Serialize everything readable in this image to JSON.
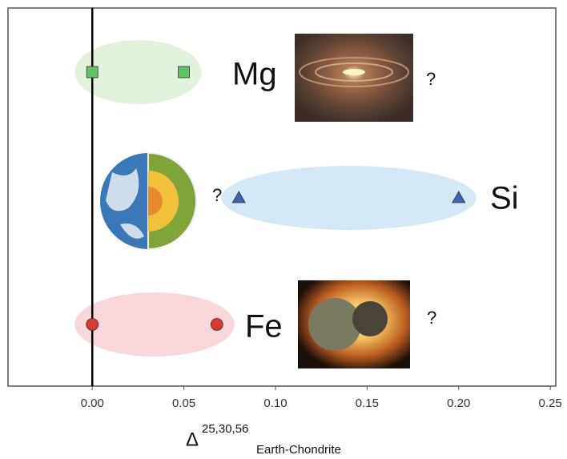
{
  "chart_data": {
    "type": "scatter",
    "x_label": {
      "symbol": "Δ",
      "sup": "25,30,56",
      "sub": "Earth-Chondrite"
    },
    "xlim": [
      -0.046,
      0.253
    ],
    "xticks": [
      {
        "value": 0,
        "label": "0.00"
      },
      {
        "value": 0.05,
        "label": "0.05"
      },
      {
        "value": 0.1,
        "label": "0.10"
      },
      {
        "value": 0.15,
        "label": "0.15"
      },
      {
        "value": 0.2,
        "label": "0.20"
      },
      {
        "value": 0.25,
        "label": "0.25"
      }
    ],
    "reference_line_x": 0,
    "series": [
      {
        "name": "Mg",
        "color": "#5cc45c",
        "band_color": "#e2f2dc",
        "marker": "square",
        "x": [
          0,
          0.05
        ],
        "note": "?"
      },
      {
        "name": "Si",
        "color": "#3d63b8",
        "band_color": "#d4e8f6",
        "marker": "triangle",
        "x": [
          0.08,
          0.2
        ],
        "note": "?"
      },
      {
        "name": "Fe",
        "color": "#d93a30",
        "band_color": "#f8d8da",
        "marker": "circle",
        "x": [
          0,
          0.068
        ],
        "note": "?"
      }
    ]
  }
}
